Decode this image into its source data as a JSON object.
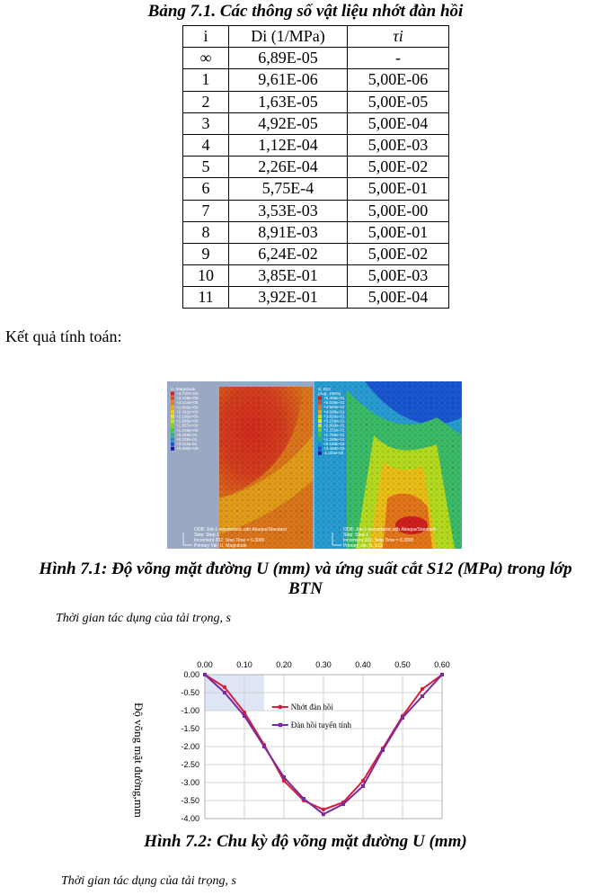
{
  "table": {
    "caption": "Bảng 7.1. Các thông số vật liệu nhớt đàn hồi",
    "headers": [
      "i",
      "Di (1/MPa)",
      "τi"
    ],
    "rows": [
      [
        "∞",
        "6,89E-05",
        "-"
      ],
      [
        "1",
        "9,61E-06",
        "5,00E-06"
      ],
      [
        "2",
        "1,63E-05",
        "5,00E-05"
      ],
      [
        "3",
        "4,92E-05",
        "5,00E-04"
      ],
      [
        "4",
        "1,12E-04",
        "5,00E-03"
      ],
      [
        "5",
        "2,26E-04",
        "5,00E-02"
      ],
      [
        "6",
        "5,75E-4",
        "5,00E-01"
      ],
      [
        "7",
        "3,53E-03",
        "5,00E-00"
      ],
      [
        "8",
        "8,91E-03",
        "5,00E-01"
      ],
      [
        "9",
        "6,24E-02",
        "5,00E-02"
      ],
      [
        "10",
        "3,85E-01",
        "5,00E-03"
      ],
      [
        "11",
        "3,92E-01",
        "5,00E-04"
      ]
    ]
  },
  "result_label": "Kết quả tính toán:",
  "figure1": {
    "left_panel": {
      "legend_title": "U, Magnitude",
      "legend_values": [
        "+3.737e+00",
        "+3.426e+00",
        "+3.114e+00",
        "+2.803e+00",
        "+2.491e+00",
        "+2.180e+00",
        "+1.869e+00",
        "+1.557e+00",
        "+1.246e+00",
        "+9.343e-01",
        "+6.228e-01",
        "+3.114e-01",
        "+0.000e+00"
      ],
      "odb": "ODB: Job-1-viscoelastic.odb    Abaqus/Standard",
      "step": "Step: Step-1",
      "increment": "Increment    202: Step Time =    0.3000",
      "primary_var": "Primary Var: U, Magnitude",
      "colors": [
        "#d42020",
        "#e04a1e",
        "#e8791c",
        "#f0a51a",
        "#f4cd18",
        "#e8e81c",
        "#b8e81e",
        "#7ad622",
        "#3ec832",
        "#22b878",
        "#1c8ed0",
        "#1a52d6",
        "#1c1ab0"
      ]
    },
    "right_panel": {
      "legend_title": "S, S12",
      "legend_subtitle": "(Avg: 100%)",
      "legend_values": [
        "+5.498e-01",
        "+5.036e-01",
        "+4.562e-01",
        "+4.096e-01",
        "+3.626e-01",
        "+3.158e-01",
        "+2.693e-01",
        "+2.231e-01",
        "+1.755e-01",
        "+1.285e-01",
        "+8.163e-02",
        "+3.463e-02",
        "-1.234e-02"
      ],
      "odb": "ODB: Job-1-viscoelastic.odb    Abaqus/Standard",
      "step": "Step: Step-1",
      "increment": "Increment    202: Step Time =    0.3000",
      "primary_var": "Primary Var: S, S12"
    },
    "caption_line1": "Hình 7.1: Độ võng mặt đường U (mm) và ứng suất cắt S12 (MPa) trong lớp",
    "caption_line2": "BTN"
  },
  "time_label_1": "Thời gian tác dụng của tải trọng, s",
  "chart_data": {
    "type": "line",
    "x_ticks": [
      "0.00",
      "0.10",
      "0.20",
      "0.30",
      "0.40",
      "0.50",
      "0.60"
    ],
    "y_ticks": [
      "0.00",
      "-0.50",
      "-1.00",
      "-1.50",
      "-2.00",
      "-2.50",
      "-3.00",
      "-3.50",
      "-4.00"
    ],
    "xlim": [
      0,
      0.6
    ],
    "ylim": [
      -4.0,
      0
    ],
    "ylabel": "Độ võng mặt đường,mm",
    "series": [
      {
        "name": "Nhớt đàn hồi",
        "color": "#d81e3c",
        "x": [
          0,
          0.05,
          0.1,
          0.15,
          0.2,
          0.25,
          0.3,
          0.35,
          0.4,
          0.45,
          0.5,
          0.55,
          0.6
        ],
        "y": [
          0,
          -0.35,
          -1.05,
          -1.95,
          -2.95,
          -3.5,
          -3.75,
          -3.55,
          -2.95,
          -2.05,
          -1.15,
          -0.4,
          0
        ]
      },
      {
        "name": "Đàn hồi tuyến tính",
        "color": "#7a2aa0",
        "x": [
          0,
          0.05,
          0.1,
          0.15,
          0.2,
          0.25,
          0.3,
          0.35,
          0.4,
          0.45,
          0.5,
          0.55,
          0.6
        ],
        "y": [
          0,
          -0.5,
          -1.15,
          -2.0,
          -2.85,
          -3.45,
          -3.88,
          -3.6,
          -3.1,
          -2.1,
          -1.2,
          -0.6,
          0
        ]
      }
    ]
  },
  "figure2_caption": "Hình 7.2: Chu kỳ độ võng mặt đường U (mm)",
  "time_label_2": "Thời gian tác dụng của tải trọng, s"
}
